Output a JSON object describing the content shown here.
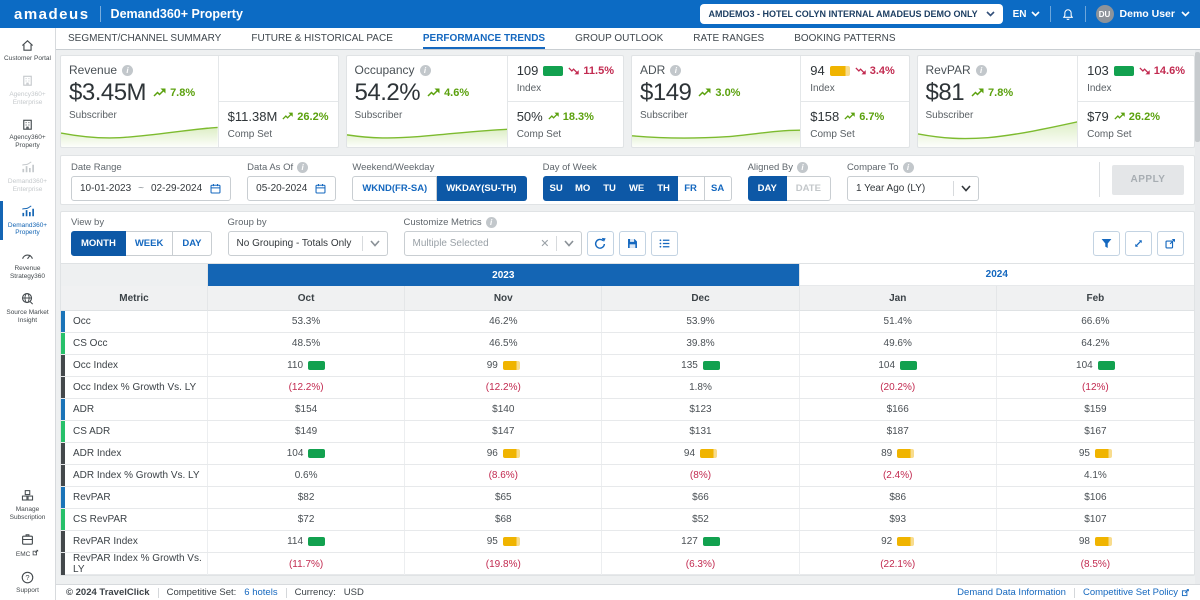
{
  "header": {
    "brand": "amadeus",
    "app_title": "Demand360+ Property",
    "hotel_selector": "AMDEMO3 - HOTEL COLYN INTERNAL AMADEUS DEMO ONLY",
    "language": "EN",
    "user_initials": "DU",
    "user_name": "Demo User"
  },
  "nav_tabs": [
    {
      "label": "SEGMENT/CHANNEL SUMMARY",
      "active": false
    },
    {
      "label": "FUTURE & HISTORICAL PACE",
      "active": false
    },
    {
      "label": "PERFORMANCE TRENDS",
      "active": true
    },
    {
      "label": "GROUP OUTLOOK",
      "active": false
    },
    {
      "label": "RATE RANGES",
      "active": false
    },
    {
      "label": "BOOKING PATTERNS",
      "active": false
    }
  ],
  "sidebar": {
    "items": [
      {
        "label": "Customer Portal",
        "icon": "home",
        "state": "normal"
      },
      {
        "label": "Agency360+ Enterprise",
        "icon": "building",
        "state": "disabled"
      },
      {
        "label": "Agency360+ Property",
        "icon": "building",
        "state": "normal"
      },
      {
        "label": "Demand360+ Enterprise",
        "icon": "chart",
        "state": "disabled"
      },
      {
        "label": "Demand360+ Property",
        "icon": "chart",
        "state": "active"
      },
      {
        "label": "Revenue Strategy360",
        "icon": "gauge",
        "state": "normal"
      },
      {
        "label": "Source Market Insight",
        "icon": "globe",
        "state": "normal"
      }
    ],
    "bottom_items": [
      {
        "label": "Manage Subscription",
        "icon": "boxes",
        "state": "normal",
        "external": false
      },
      {
        "label": "EMC",
        "icon": "external-box",
        "state": "normal",
        "external": true
      },
      {
        "label": "Support",
        "icon": "question",
        "state": "normal",
        "external": false
      }
    ]
  },
  "kpi": [
    {
      "title": "Revenue",
      "subscriber_value": "$3.45M",
      "subscriber_trend": "7.8%",
      "subscriber_trend_dir": "up",
      "subscriber_label": "Subscriber",
      "compset_value": "$11.38M",
      "compset_trend": "26.2%",
      "compset_trend_dir": "up",
      "compset_label": "Comp Set"
    },
    {
      "title": "Occupancy",
      "subscriber_value": "54.2%",
      "subscriber_trend": "4.6%",
      "subscriber_trend_dir": "up",
      "subscriber_label": "Subscriber",
      "index_value": "109",
      "index_chip": "green",
      "index_trend": "11.5%",
      "index_trend_dir": "down",
      "index_label": "Index",
      "compset_value": "50%",
      "compset_trend": "18.3%",
      "compset_trend_dir": "up",
      "compset_label": "Comp Set"
    },
    {
      "title": "ADR",
      "subscriber_value": "$149",
      "subscriber_trend": "3.0%",
      "subscriber_trend_dir": "up",
      "subscriber_label": "Subscriber",
      "index_value": "94",
      "index_chip": "yellow",
      "index_trend": "3.4%",
      "index_trend_dir": "down",
      "index_label": "Index",
      "compset_value": "$158",
      "compset_trend": "6.7%",
      "compset_trend_dir": "up",
      "compset_label": "Comp Set"
    },
    {
      "title": "RevPAR",
      "subscriber_value": "$81",
      "subscriber_trend": "7.8%",
      "subscriber_trend_dir": "up",
      "subscriber_label": "Subscriber",
      "index_value": "103",
      "index_chip": "green",
      "index_trend": "14.6%",
      "index_trend_dir": "down",
      "index_label": "Index",
      "compset_value": "$79",
      "compset_trend": "26.2%",
      "compset_trend_dir": "up",
      "compset_label": "Comp Set"
    }
  ],
  "filters": {
    "date_range": {
      "label": "Date Range",
      "start": "10-01-2023",
      "separator": "~",
      "end": "02-29-2024"
    },
    "data_as_of": {
      "label": "Data As Of",
      "value": "05-20-2024"
    },
    "weekend_weekday": {
      "label": "Weekend/Weekday",
      "options": [
        {
          "label": "WKND(FR-SA)",
          "selected": false
        },
        {
          "label": "WKDAY(SU-TH)",
          "selected": true
        }
      ]
    },
    "day_of_week": {
      "label": "Day of Week",
      "days": [
        {
          "label": "SU",
          "selected": true
        },
        {
          "label": "MO",
          "selected": true
        },
        {
          "label": "TU",
          "selected": true
        },
        {
          "label": "WE",
          "selected": true
        },
        {
          "label": "TH",
          "selected": true
        },
        {
          "label": "FR",
          "selected": false
        },
        {
          "label": "SA",
          "selected": false
        }
      ]
    },
    "aligned_by": {
      "label": "Aligned By",
      "options": [
        {
          "label": "DAY",
          "selected": true,
          "disabled": false
        },
        {
          "label": "DATE",
          "selected": false,
          "disabled": true
        }
      ]
    },
    "compare_to": {
      "label": "Compare To",
      "value": "1 Year Ago (LY)"
    },
    "apply_label": "APPLY"
  },
  "toolbar": {
    "view_by": {
      "label": "View by",
      "options": [
        {
          "label": "MONTH",
          "selected": true
        },
        {
          "label": "WEEK",
          "selected": false
        },
        {
          "label": "DAY",
          "selected": false
        }
      ]
    },
    "group_by": {
      "label": "Group by",
      "value": "No Grouping - Totals Only"
    },
    "customize_metrics": {
      "label": "Customize Metrics",
      "value": "Multiple Selected"
    }
  },
  "table": {
    "year_groups": [
      {
        "label": "2023",
        "span": 3,
        "active": true
      },
      {
        "label": "2024",
        "span": 2,
        "active": false
      }
    ],
    "columns": [
      "Metric",
      "Oct",
      "Nov",
      "Dec",
      "Jan",
      "Feb"
    ],
    "rows": [
      {
        "label": "Occ",
        "type": "subscriber",
        "cells": [
          {
            "t": "53.3%"
          },
          {
            "t": "46.2%"
          },
          {
            "t": "53.9%"
          },
          {
            "t": "51.4%"
          },
          {
            "t": "66.6%"
          }
        ]
      },
      {
        "label": "CS Occ",
        "type": "compset",
        "cells": [
          {
            "t": "48.5%"
          },
          {
            "t": "46.5%"
          },
          {
            "t": "39.8%"
          },
          {
            "t": "49.6%"
          },
          {
            "t": "64.2%"
          }
        ]
      },
      {
        "label": "Occ Index",
        "type": "index",
        "cells": [
          {
            "t": "110",
            "chip": "green"
          },
          {
            "t": "99",
            "chip": "yellow"
          },
          {
            "t": "135",
            "chip": "green"
          },
          {
            "t": "104",
            "chip": "green"
          },
          {
            "t": "104",
            "chip": "green"
          }
        ]
      },
      {
        "label": "Occ Index % Growth Vs. LY",
        "type": "index",
        "cells": [
          {
            "t": "(12.2%)",
            "neg": true
          },
          {
            "t": "(12.2%)",
            "neg": true
          },
          {
            "t": "1.8%"
          },
          {
            "t": "(20.2%)",
            "neg": true
          },
          {
            "t": "(12%)",
            "neg": true
          }
        ]
      },
      {
        "label": "ADR",
        "type": "subscriber",
        "cells": [
          {
            "t": "$154"
          },
          {
            "t": "$140"
          },
          {
            "t": "$123"
          },
          {
            "t": "$166"
          },
          {
            "t": "$159"
          }
        ]
      },
      {
        "label": "CS ADR",
        "type": "compset",
        "cells": [
          {
            "t": "$149"
          },
          {
            "t": "$147"
          },
          {
            "t": "$131"
          },
          {
            "t": "$187"
          },
          {
            "t": "$167"
          }
        ]
      },
      {
        "label": "ADR Index",
        "type": "index",
        "cells": [
          {
            "t": "104",
            "chip": "green"
          },
          {
            "t": "96",
            "chip": "yellow"
          },
          {
            "t": "94",
            "chip": "yellow"
          },
          {
            "t": "89",
            "chip": "yellow"
          },
          {
            "t": "95",
            "chip": "yellow"
          }
        ]
      },
      {
        "label": "ADR Index % Growth Vs. LY",
        "type": "index",
        "cells": [
          {
            "t": "0.6%"
          },
          {
            "t": "(8.6%)",
            "neg": true
          },
          {
            "t": "(8%)",
            "neg": true
          },
          {
            "t": "(2.4%)",
            "neg": true
          },
          {
            "t": "4.1%"
          }
        ]
      },
      {
        "label": "RevPAR",
        "type": "subscriber",
        "cells": [
          {
            "t": "$82"
          },
          {
            "t": "$65"
          },
          {
            "t": "$66"
          },
          {
            "t": "$86"
          },
          {
            "t": "$106"
          }
        ]
      },
      {
        "label": "CS RevPAR",
        "type": "compset",
        "cells": [
          {
            "t": "$72"
          },
          {
            "t": "$68"
          },
          {
            "t": "$52"
          },
          {
            "t": "$93"
          },
          {
            "t": "$107"
          }
        ]
      },
      {
        "label": "RevPAR Index",
        "type": "index",
        "cells": [
          {
            "t": "114",
            "chip": "green"
          },
          {
            "t": "95",
            "chip": "yellow"
          },
          {
            "t": "127",
            "chip": "green"
          },
          {
            "t": "92",
            "chip": "yellow"
          },
          {
            "t": "98",
            "chip": "yellow"
          }
        ]
      },
      {
        "label": "RevPAR Index % Growth Vs. LY",
        "type": "index",
        "cells": [
          {
            "t": "(11.7%)",
            "neg": true
          },
          {
            "t": "(19.8%)",
            "neg": true
          },
          {
            "t": "(6.3%)",
            "neg": true
          },
          {
            "t": "(22.1%)",
            "neg": true
          },
          {
            "t": "(8.5%)",
            "neg": true
          }
        ]
      }
    ]
  },
  "footer": {
    "copyright": "© 2024 TravelClick",
    "competitive_set_label": "Competitive Set:",
    "competitive_set_value": "6 hotels",
    "currency_label": "Currency:",
    "currency_value": "USD",
    "link_demand": "Demand Data Information",
    "link_policy": "Competitive Set Policy"
  },
  "colors": {
    "header_blue": "#0c6bc4",
    "selected_blue": "#0d58a6",
    "link_blue": "#1568bf",
    "chip_green": "#12a14f",
    "chip_yellow": "#f0b400",
    "trend_green": "#5ba10e",
    "trend_red": "#c22a50"
  }
}
